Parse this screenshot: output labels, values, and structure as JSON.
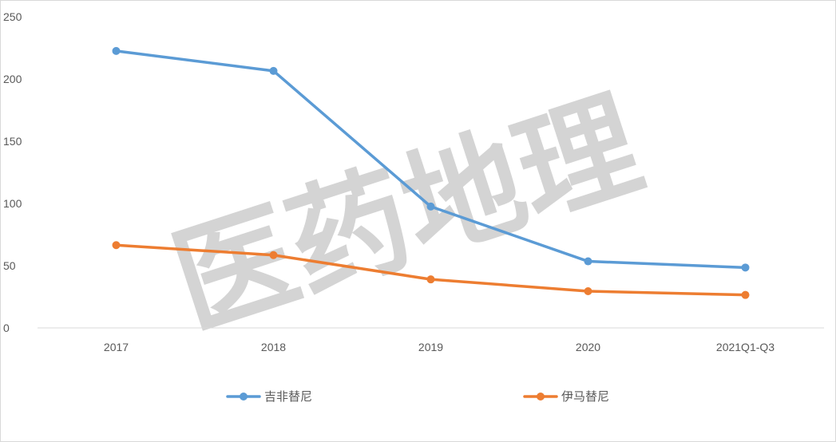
{
  "chart_data": {
    "type": "line",
    "title": "",
    "xlabel": "",
    "ylabel": "",
    "categories": [
      "2017",
      "2018",
      "2019",
      "2020",
      "2021Q1-Q3"
    ],
    "ylim": [
      0,
      250
    ],
    "yticks": [
      "0",
      "50",
      "100",
      "150",
      "200",
      "250"
    ],
    "grid": false,
    "legend_position": "bottom",
    "series": [
      {
        "name": "吉非替尼",
        "color": "#5b9bd5",
        "values": [
          222.5,
          206.5,
          97.5,
          53.5,
          48.5
        ]
      },
      {
        "name": "伊马替尼",
        "color": "#ed7d31",
        "values": [
          66.5,
          58.5,
          39,
          29.5,
          26.5
        ]
      }
    ]
  },
  "watermark": {
    "text": "医药地理",
    "color": "#d4d4d4"
  }
}
